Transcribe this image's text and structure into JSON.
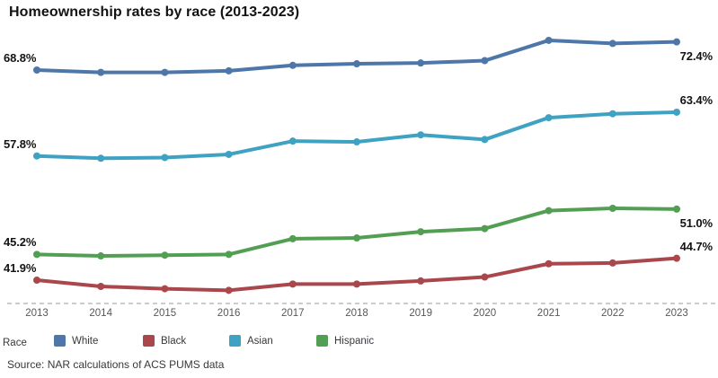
{
  "title": "Homeownership rates by race (2013-2023)",
  "source": "Source: NAR calculations of ACS PUMS data",
  "legend": {
    "label": "Race",
    "items": [
      {
        "label": "White",
        "color": "#4d76a9"
      },
      {
        "label": "Black",
        "color": "#a9474c"
      },
      {
        "label": "Asian",
        "color": "#3fa2c2"
      },
      {
        "label": "Hispanic",
        "color": "#529e53"
      }
    ]
  },
  "colors": {
    "axis_dash": "#cccccc",
    "tick_text": "#55585b",
    "label_text": "#131313"
  },
  "chart_data": {
    "type": "line",
    "title": "Homeownership rates by race (2013-2023)",
    "x": [
      2013,
      2014,
      2015,
      2016,
      2017,
      2018,
      2019,
      2020,
      2021,
      2022,
      2023
    ],
    "series": [
      {
        "name": "White",
        "color": "#4d76a9",
        "values": [
          68.8,
          68.5,
          68.5,
          68.7,
          69.4,
          69.6,
          69.7,
          70.0,
          72.6,
          72.2,
          72.4
        ],
        "start_label": "68.8%",
        "end_label": "72.4%",
        "end_label_position": "below"
      },
      {
        "name": "Black",
        "color": "#a9474c",
        "values": [
          41.9,
          41.1,
          40.8,
          40.6,
          41.4,
          41.4,
          41.8,
          42.3,
          44.0,
          44.1,
          44.7
        ],
        "start_label": "41.9%",
        "end_label": "44.7%",
        "end_label_position": "above"
      },
      {
        "name": "Asian",
        "color": "#3fa2c2",
        "values": [
          57.8,
          57.5,
          57.6,
          58.0,
          59.7,
          59.6,
          60.5,
          59.9,
          62.7,
          63.2,
          63.4
        ],
        "start_label": "57.8%",
        "end_label": "63.4%",
        "end_label_position": "above"
      },
      {
        "name": "Hispanic",
        "color": "#529e53",
        "values": [
          45.2,
          45.0,
          45.1,
          45.2,
          47.2,
          47.3,
          48.1,
          48.5,
          50.8,
          51.1,
          51.0
        ],
        "start_label": "45.2%",
        "end_label": "51.0%",
        "end_label_position": "below"
      }
    ],
    "xlabel": "",
    "ylabel": "",
    "ylim": [
      38,
      75
    ],
    "grid": false,
    "legend_position": "bottom",
    "value_labels": "first and last point of each series"
  }
}
